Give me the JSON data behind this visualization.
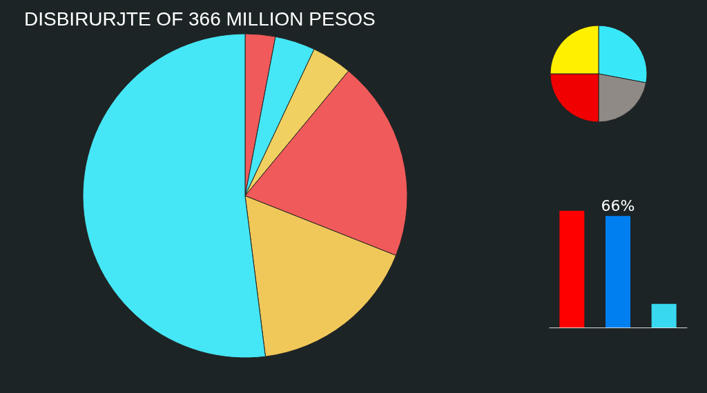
{
  "chart_data": [
    {
      "type": "pie",
      "title": "DISBIRURJTE OF 366 MILLION PESOS",
      "categories": [
        null,
        null,
        null,
        null,
        null,
        null
      ],
      "values": [
        3,
        4,
        4,
        20,
        17,
        52
      ],
      "colors": [
        "#f05a5a",
        "#45e6f5",
        "#f0d060",
        "#f05a5a",
        "#f0c85a",
        "#45e6f5"
      ]
    },
    {
      "type": "pie",
      "categories": [
        null,
        null,
        null,
        null
      ],
      "values": [
        28,
        22,
        25,
        25
      ],
      "colors": [
        "#38e8f8",
        "#908a86",
        "#f00000",
        "#fff000"
      ]
    },
    {
      "type": "bar",
      "categories": [
        null,
        null,
        null
      ],
      "values": [
        69,
        66,
        14
      ],
      "colors": [
        "#ff0000",
        "#0080f0",
        "#38d8f0"
      ],
      "value_labels": [
        null,
        "66%",
        null
      ]
    }
  ]
}
